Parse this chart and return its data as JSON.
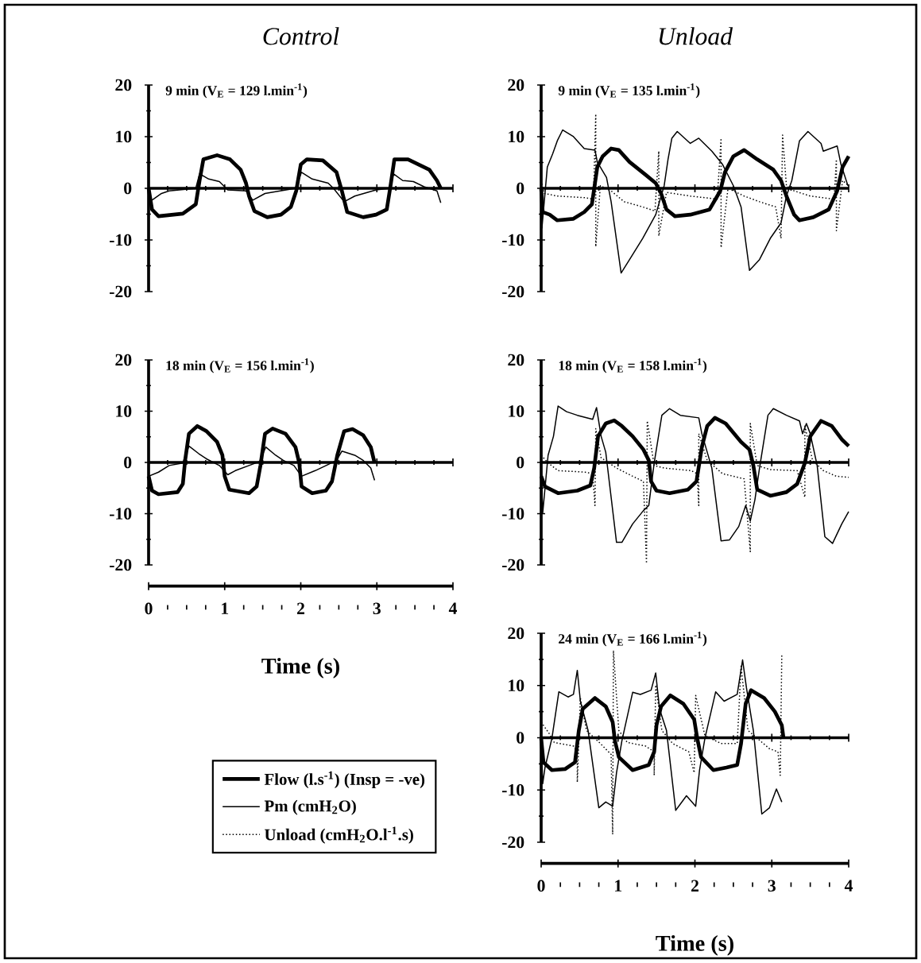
{
  "chart_data": [
    {
      "type": "line",
      "title": "Control",
      "subtitle": "9 min (V$_{E}$ = 129 l.min$^{-1}$)",
      "xlim": [
        0,
        4
      ],
      "ylim": [
        -20,
        20
      ],
      "xticks": [
        0,
        1,
        2,
        3,
        4
      ],
      "yticks": [
        -20,
        -10,
        0,
        10,
        20
      ],
      "tick_labels": "y",
      "series": [
        {
          "color": "#000000",
          "line_style": "solid",
          "x": [
            0,
            0.045,
            0.13,
            0.45,
            0.62,
            0.67,
            0.72,
            0.9,
            1.07,
            1.21,
            1.28,
            1.32,
            1.39,
            1.56,
            1.74,
            1.87,
            1.94,
            2.0,
            2.08,
            2.29,
            2.47,
            2.54,
            2.61,
            2.82,
            2.99,
            3.13,
            3.18,
            3.23,
            3.41,
            3.69,
            3.79,
            3.84
          ],
          "values": [
            0,
            -4.1,
            -5.4,
            -4.9,
            -3.1,
            1.5,
            5.6,
            6.4,
            5.6,
            3.6,
            1.0,
            -1.5,
            -4.4,
            -5.6,
            -5.1,
            -3.6,
            -0.5,
            4.6,
            5.6,
            5.4,
            3.1,
            -0.5,
            -4.6,
            -5.6,
            -5.1,
            -4.1,
            0.5,
            5.6,
            5.6,
            3.6,
            1.5,
            0
          ]
        },
        {
          "color": "#000000",
          "line_style": "solid",
          "x": [
            0.045,
            0.17,
            0.27,
            0.62,
            0.67,
            0.79,
            0.93,
            1.04,
            1.28,
            1.37,
            1.53,
            1.93,
            2.01,
            2.15,
            2.36,
            2.43,
            2.57,
            2.71,
            2.99,
            3.16,
            3.22,
            3.34,
            3.48,
            3.62,
            3.79,
            3.84
          ],
          "values": [
            -2.3,
            -1.0,
            -0.5,
            0,
            2.8,
            1.8,
            1.3,
            -0.3,
            -0.5,
            -2.3,
            -1.0,
            0,
            3.1,
            1.8,
            1.0,
            0,
            -2.6,
            -1.5,
            -0.3,
            0,
            2.8,
            1.5,
            1.3,
            0.3,
            -0.5,
            -2.8
          ]
        }
      ]
    },
    {
      "type": "line",
      "title": "Unload",
      "subtitle": "9 min (V$_{E}$ = 135 l.min$^{-1}$)",
      "xlim": [
        0,
        4
      ],
      "ylim": [
        -20,
        20
      ],
      "xticks": [
        0,
        1,
        2,
        3,
        4
      ],
      "yticks": [
        -20,
        -10,
        0,
        10,
        20
      ],
      "tick_labels": "y",
      "series": [
        {
          "color": "#000000",
          "line_style": "solid",
          "x": [
            0,
            0.02,
            0.11,
            0.21,
            0.42,
            0.56,
            0.66,
            0.73,
            0.8,
            0.91,
            1.01,
            1.15,
            1.36,
            1.49,
            1.56,
            1.63,
            1.74,
            1.94,
            2.19,
            2.33,
            2.39,
            2.5,
            2.64,
            2.81,
            3.02,
            3.12,
            3.19,
            3.29,
            3.36,
            3.54,
            3.74,
            3.85,
            3.92,
            4.0
          ],
          "values": [
            0,
            -4.6,
            -5.1,
            -6.2,
            -5.9,
            -4.6,
            -3.1,
            4.1,
            6.2,
            7.7,
            7.4,
            5.1,
            2.6,
            1.0,
            -1.0,
            -4.1,
            -5.4,
            -5.1,
            -4.1,
            -0.5,
            3.1,
            6.2,
            7.4,
            5.6,
            3.6,
            1.5,
            -1.5,
            -5.1,
            -6.2,
            -5.6,
            -4.1,
            -0.5,
            4.1,
            6.2
          ]
        },
        {
          "color": "#000000",
          "line_style": "solid",
          "x": [
            0,
            0.01,
            0.08,
            0.15,
            0.21,
            0.28,
            0.42,
            0.56,
            0.7,
            0.73,
            0.85,
            0.91,
            1.04,
            1.15,
            1.32,
            1.49,
            1.6,
            1.65,
            1.7,
            1.77,
            1.94,
            2.05,
            2.22,
            2.36,
            2.5,
            2.6,
            2.71,
            2.84,
            2.98,
            3.12,
            3.19,
            3.26,
            3.36,
            3.47,
            3.64,
            3.67,
            3.85,
            3.9,
            3.99
          ],
          "values": [
            0,
            -7.7,
            4.1,
            6.7,
            9.2,
            11.3,
            10.0,
            7.7,
            7.4,
            5.1,
            2.1,
            -2.6,
            -16.4,
            -13.8,
            -9.7,
            -5.1,
            0.5,
            5.6,
            9.7,
            11.0,
            8.7,
            9.7,
            7.2,
            4.6,
            0.5,
            -3.6,
            -15.9,
            -13.8,
            -9.7,
            -6.7,
            -1.5,
            1.5,
            9.2,
            11.0,
            8.7,
            7.2,
            8.2,
            4.6,
            0.5
          ]
        },
        {
          "color": "#000000",
          "line_style": "dotted",
          "x": [
            0,
            0.04,
            0.21,
            0.56,
            0.68,
            0.71,
            0.71,
            0.77,
            0.91,
            1.08,
            1.32,
            1.48,
            1.53,
            1.53,
            1.63,
            1.94,
            2.29,
            2.34,
            2.34,
            2.43,
            2.64,
            2.84,
            3.05,
            3.12,
            3.14,
            3.19,
            3.29,
            3.5,
            3.81,
            3.84,
            3.84,
            3.92,
            4.0
          ],
          "values": [
            1.5,
            -1.0,
            -1.5,
            -1.8,
            -2.1,
            14.4,
            -11.3,
            0.5,
            -0.5,
            -2.6,
            -3.6,
            -4.4,
            7.2,
            -9.2,
            -0.8,
            -1.5,
            -2.1,
            9.7,
            -11.5,
            0,
            -1.5,
            -2.6,
            -3.6,
            -9.7,
            10.3,
            0.5,
            -0.5,
            -1.5,
            -2.1,
            5.6,
            -8.2,
            1.5,
            0.5
          ]
        }
      ]
    },
    {
      "type": "line",
      "subtitle": "18 min (V$_{E}$ = 156 l.min$^{-1}$)",
      "xlabel": "Time (s)",
      "xlim": [
        0,
        4
      ],
      "ylim": [
        -20,
        20
      ],
      "xticks": [
        0,
        1,
        2,
        3,
        4
      ],
      "yticks": [
        -20,
        -10,
        0,
        10,
        20
      ],
      "series": [
        {
          "color": "#000000",
          "line_style": "solid",
          "x": [
            0,
            0.045,
            0.13,
            0.38,
            0.45,
            0.48,
            0.53,
            0.64,
            0.76,
            0.9,
            0.97,
            1.0,
            1.06,
            1.32,
            1.42,
            1.47,
            1.53,
            1.63,
            1.8,
            1.93,
            1.98,
            2.01,
            2.15,
            2.33,
            2.41,
            2.48,
            2.57,
            2.68,
            2.82,
            2.92,
            2.97
          ],
          "values": [
            -2.7,
            -5.5,
            -6.2,
            -5.8,
            -4.2,
            0.4,
            5.6,
            7.1,
            6.1,
            4.0,
            1.4,
            -2.7,
            -5.3,
            -6.0,
            -4.7,
            -0.6,
            5.6,
            6.6,
            5.6,
            3.0,
            -0.1,
            -4.7,
            -6.0,
            -5.5,
            -3.7,
            1.4,
            6.1,
            6.5,
            5.3,
            3.0,
            -0.1
          ]
        },
        {
          "color": "#000000",
          "line_style": "solid",
          "x": [
            0,
            0.13,
            0.27,
            0.45,
            0.53,
            0.66,
            0.76,
            0.93,
            1.04,
            1.14,
            1.32,
            1.46,
            1.54,
            1.67,
            1.77,
            1.91,
            2.01,
            2.19,
            2.36,
            2.47,
            2.54,
            2.71,
            2.82,
            2.92,
            2.97
          ],
          "values": [
            -2.7,
            -1.9,
            -0.6,
            -0.1,
            3.2,
            1.7,
            0.7,
            -0.6,
            -2.4,
            -1.6,
            -0.6,
            0.2,
            3.0,
            1.4,
            0.4,
            -0.6,
            -2.7,
            -1.6,
            -0.4,
            0.4,
            2.2,
            1.4,
            0.4,
            -1.1,
            -3.5
          ]
        }
      ]
    },
    {
      "type": "line",
      "subtitle": "18 min (V$_{E}$ = 158 l.min$^{-1}$)",
      "xlim": [
        0,
        4
      ],
      "ylim": [
        -20,
        20
      ],
      "xticks": [
        0,
        1,
        2,
        3,
        4
      ],
      "yticks": [
        -20,
        -10,
        0,
        10,
        20
      ],
      "tick_labels": "y",
      "series": [
        {
          "color": "#000000",
          "line_style": "solid",
          "x": [
            0,
            0.05,
            0.22,
            0.47,
            0.64,
            0.69,
            0.74,
            0.84,
            0.95,
            1.05,
            1.19,
            1.33,
            1.4,
            1.43,
            1.5,
            1.67,
            1.91,
            2.02,
            2.09,
            2.16,
            2.26,
            2.4,
            2.6,
            2.71,
            2.76,
            2.81,
            2.98,
            3.19,
            3.33,
            3.43,
            3.5,
            3.64,
            3.78,
            3.91,
            4.0
          ],
          "values": [
            -2.7,
            -4.7,
            -6.0,
            -5.5,
            -4.5,
            -1.1,
            5.1,
            7.6,
            8.2,
            7.1,
            5.1,
            2.5,
            0.4,
            -3.7,
            -5.5,
            -6.0,
            -5.3,
            -3.7,
            3.0,
            7.1,
            8.7,
            7.6,
            4.0,
            2.5,
            -0.6,
            -5.3,
            -6.5,
            -5.8,
            -4.2,
            -0.1,
            5.1,
            8.1,
            7.1,
            4.5,
            3.2
          ]
        },
        {
          "color": "#000000",
          "line_style": "solid",
          "x": [
            0,
            0.02,
            0.09,
            0.16,
            0.22,
            0.33,
            0.47,
            0.67,
            0.72,
            0.78,
            0.84,
            0.98,
            1.05,
            1.19,
            1.33,
            1.4,
            1.47,
            1.57,
            1.67,
            1.81,
            2.05,
            2.09,
            2.22,
            2.34,
            2.45,
            2.57,
            2.66,
            2.72,
            2.78,
            2.84,
            2.95,
            3.02,
            3.19,
            3.36,
            3.4,
            3.45,
            3.5,
            3.59,
            3.69,
            3.79,
            3.91,
            4.0
          ],
          "values": [
            0,
            -9.9,
            1.4,
            5.1,
            11.0,
            9.9,
            9.2,
            8.4,
            10.7,
            5.1,
            2.0,
            -15.6,
            -15.6,
            -12.0,
            -9.4,
            -8.4,
            -0.1,
            9.2,
            10.5,
            9.2,
            8.7,
            5.6,
            -1.1,
            -15.3,
            -15.1,
            -12.5,
            -8.4,
            -11.4,
            -7.3,
            -1.1,
            9.2,
            10.5,
            9.2,
            8.1,
            5.6,
            7.6,
            5.6,
            -0.6,
            -14.5,
            -15.8,
            -12.0,
            -9.6
          ]
        },
        {
          "color": "#000000",
          "line_style": "dotted",
          "x": [
            0,
            0.09,
            0.22,
            0.57,
            0.67,
            0.7,
            0.71,
            0.78,
            0.98,
            1.19,
            1.33,
            1.37,
            1.38,
            1.47,
            1.6,
            1.95,
            2.03,
            2.05,
            2.05,
            2.16,
            2.36,
            2.64,
            2.72,
            2.72,
            2.81,
            2.98,
            3.33,
            3.43,
            3.43,
            3.53,
            3.67,
            3.84,
            4.0
          ],
          "values": [
            1.4,
            -0.1,
            -1.6,
            -1.9,
            -2.2,
            -8.4,
            6.6,
            0.9,
            -1.1,
            -2.7,
            -3.7,
            -19.7,
            8.1,
            -0.6,
            -1.1,
            -1.6,
            -2.2,
            -8.4,
            5.6,
            0.4,
            -2.2,
            -3.2,
            -17.4,
            7.6,
            -0.6,
            -1.4,
            -1.6,
            -6.8,
            7.1,
            0.4,
            -1.6,
            -2.7,
            -2.9
          ]
        }
      ]
    },
    {
      "type": "line",
      "subtitle": "24 min (V$_{E}$ = 166 l.min$^{-1}$)",
      "xlabel": "Time (s)",
      "xlim": [
        0,
        4
      ],
      "ylim": [
        -20,
        20
      ],
      "xticks": [
        0,
        1,
        2,
        3,
        4
      ],
      "yticks": [
        -20,
        -10,
        0,
        10,
        20
      ],
      "legend": "left",
      "series": [
        {
          "name": "Flow (l.s$^{-1}$) (Insp = -ve)",
          "color": "#000000",
          "line_style": "solid",
          "x": [
            0,
            0.03,
            0.14,
            0.31,
            0.44,
            0.49,
            0.54,
            0.7,
            0.84,
            0.93,
            0.96,
            1.01,
            1.19,
            1.4,
            1.47,
            1.5,
            1.56,
            1.68,
            1.85,
            1.99,
            2.03,
            2.08,
            2.24,
            2.41,
            2.55,
            2.6,
            2.66,
            2.73,
            2.9,
            3.04,
            3.13,
            3.15
          ],
          "values": [
            -0.1,
            -4.7,
            -6.2,
            -6.0,
            -4.7,
            1.4,
            5.5,
            7.6,
            6.0,
            3.0,
            -0.6,
            -3.7,
            -6.2,
            -5.2,
            -2.7,
            2.4,
            6.0,
            8.1,
            6.5,
            3.5,
            -0.1,
            -3.7,
            -6.2,
            -5.7,
            -5.2,
            -1.1,
            6.5,
            9.1,
            7.6,
            5.0,
            2.4,
            0.2
          ]
        },
        {
          "name": "Pm (cmH$_{2}$O)",
          "color": "#000000",
          "line_style": "solid",
          "x": [
            0,
            0.02,
            0.05,
            0.14,
            0.23,
            0.35,
            0.42,
            0.47,
            0.51,
            0.61,
            0.75,
            0.84,
            0.93,
            0.98,
            1.05,
            1.19,
            1.29,
            1.43,
            1.49,
            1.54,
            1.63,
            1.75,
            1.89,
            2.01,
            2.06,
            2.13,
            2.27,
            2.38,
            2.55,
            2.62,
            2.67,
            2.76,
            2.87,
            2.97,
            3.06,
            3.13
          ],
          "values": [
            0,
            -8.8,
            -5.7,
            -0.1,
            8.8,
            7.8,
            8.3,
            12.9,
            7.0,
            1.4,
            -13.4,
            -12.3,
            -13.1,
            -6.7,
            -0.6,
            8.7,
            8.3,
            9.1,
            12.4,
            5.5,
            1.4,
            -13.9,
            -11.1,
            -13.1,
            -6.2,
            -0.1,
            8.8,
            7.0,
            8.3,
            14.9,
            9.6,
            1.4,
            -14.6,
            -13.4,
            -9.8,
            -12.3
          ]
        },
        {
          "name": "Unload (cmH$_{2}$O.l$^{-1}$.s)",
          "color": "#000000",
          "line_style": "dotted",
          "x": [
            0,
            0.1,
            0.17,
            0.42,
            0.47,
            0.47,
            0.51,
            0.59,
            0.77,
            0.91,
            0.93,
            0.94,
            1.01,
            1.12,
            1.36,
            1.47,
            1.47,
            1.49,
            1.57,
            1.71,
            1.92,
            1.99,
            2.01,
            2.13,
            2.34,
            2.55,
            2.6,
            2.69,
            2.97,
            3.08,
            3.11,
            3.13
          ],
          "values": [
            3.0,
            0.9,
            -0.9,
            -1.6,
            -2.7,
            -8.5,
            7.6,
            1.4,
            -1.1,
            -3.2,
            -18.5,
            16.7,
            1.4,
            -0.9,
            -1.6,
            -2.7,
            -7.2,
            10.1,
            1.4,
            -1.1,
            -2.7,
            -6.7,
            8.1,
            0.4,
            -1.1,
            -1.1,
            13.7,
            1.4,
            -2.1,
            -2.7,
            -7.2,
            16.0
          ]
        }
      ]
    }
  ]
}
